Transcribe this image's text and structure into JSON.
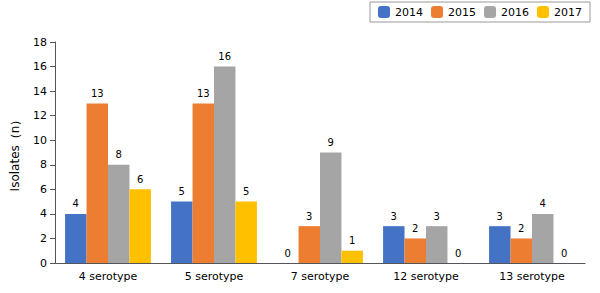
{
  "chart_data": {
    "type": "bar",
    "ylabel": "Isolates（n）",
    "categories": [
      "4 serotype",
      "5 serotype",
      "7 serotype",
      "12 serotype",
      "13 serotype"
    ],
    "series": [
      {
        "name": "2014",
        "color": "#4472C4",
        "values": [
          4,
          5,
          0,
          3,
          3
        ]
      },
      {
        "name": "2015",
        "color": "#ED7D31",
        "values": [
          13,
          13,
          3,
          2,
          2
        ]
      },
      {
        "name": "2016",
        "color": "#A5A5A5",
        "values": [
          8,
          16,
          9,
          3,
          4
        ]
      },
      {
        "name": "2017",
        "color": "#FFC000",
        "values": [
          6,
          5,
          1,
          0,
          0
        ]
      }
    ],
    "ylim": [
      0,
      18
    ],
    "yticks": [
      0,
      2,
      4,
      6,
      8,
      10,
      12,
      14,
      16,
      18
    ],
    "grid": false,
    "legend": "upper right",
    "data_labels": true
  }
}
